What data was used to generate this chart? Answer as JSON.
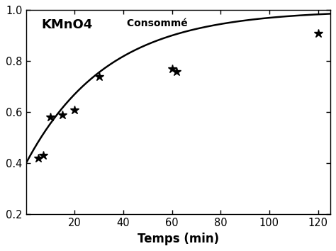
{
  "scatter_x": [
    5,
    7,
    10,
    15,
    20,
    30,
    60,
    62,
    120
  ],
  "scatter_y": [
    0.42,
    0.43,
    0.58,
    0.59,
    0.61,
    0.74,
    0.77,
    0.76,
    0.91
  ],
  "curve_params": {
    "a": 1.0,
    "b": 0.6,
    "c": 0.03
  },
  "xlim": [
    0,
    125
  ],
  "ylim": [
    0.2,
    1.0
  ],
  "xticks": [
    20,
    40,
    60,
    80,
    100,
    120
  ],
  "yticks": [
    0.2,
    0.4,
    0.6,
    0.8,
    1.0
  ],
  "xlabel": "Temps (min)",
  "ylabel_text_bold": "KMnO4",
  "ylabel_text_small": " Consommé",
  "background_color": "#ffffff",
  "marker": "*",
  "marker_size": 9,
  "marker_color": "#000000",
  "line_color": "#000000",
  "line_width": 1.8
}
